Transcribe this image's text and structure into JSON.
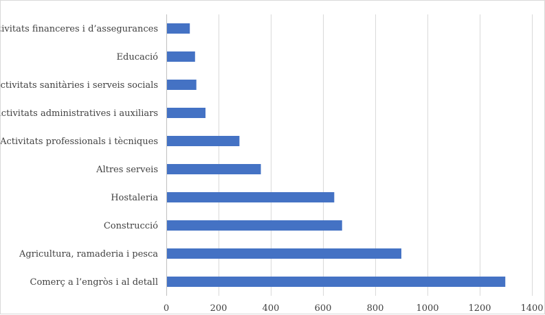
{
  "chart_data": {
    "type": "bar",
    "orientation": "horizontal",
    "categories": [
      "Activitats financeres i d’assegurances",
      "Educació",
      "Activitats sanitàries i serveis socials",
      "Activitats administratives i auxiliars",
      "Activitats professionals i tècniques",
      "Altres serveis",
      "Hostaleria",
      "Construcció",
      "Agricultura, ramaderia i pesca",
      "Comerç a l’engròs i al detall"
    ],
    "values": [
      90,
      110,
      115,
      150,
      280,
      362,
      643,
      673,
      900,
      1298
    ],
    "xlim": [
      0,
      1400
    ],
    "xticks": [
      "0",
      "200",
      "400",
      "600",
      "800",
      "1000",
      "1200",
      "1400"
    ],
    "grid": "vertical",
    "legend": "none",
    "bar_color": "#4472c4",
    "grid_color": "#d9d9d9",
    "axis_color": "#bfbfbf",
    "label_color": "#404040"
  }
}
